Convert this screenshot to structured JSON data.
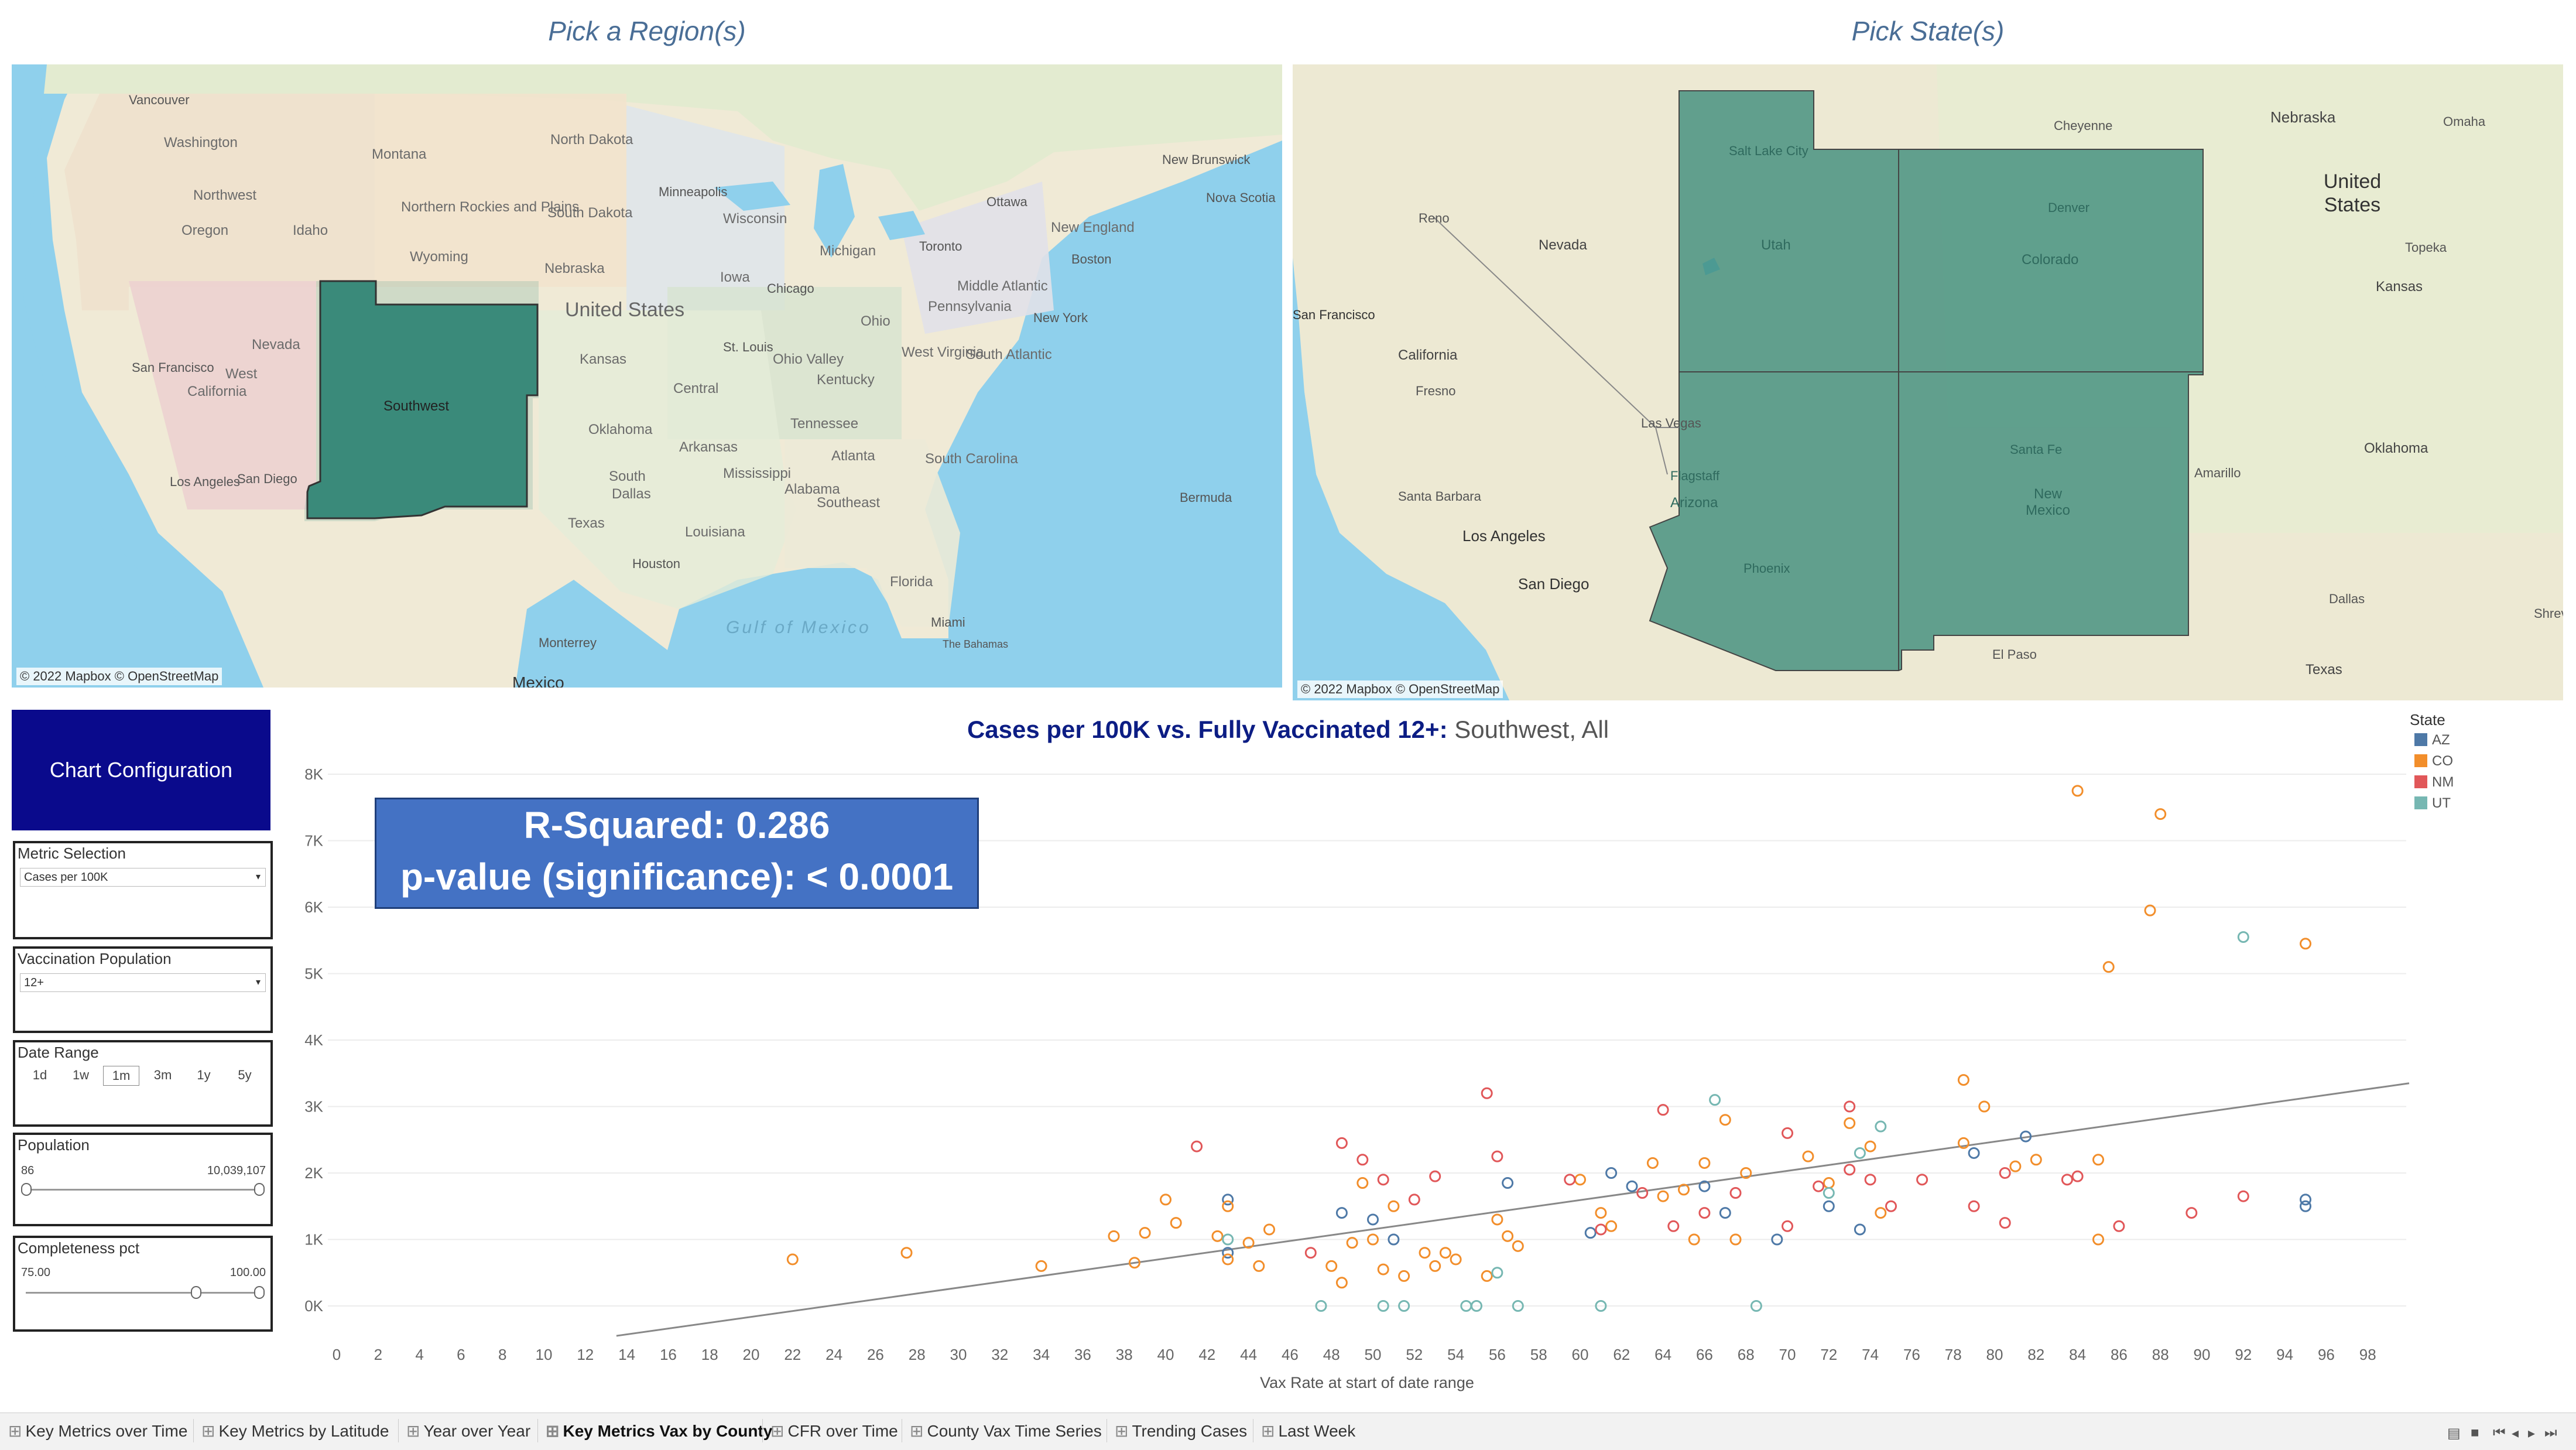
{
  "maps": {
    "region_title": "Pick a Region(s)",
    "state_title": "Pick State(s)",
    "credit": "© 2022 Mapbox © OpenStreetMap",
    "region_map": {
      "selected_label": "Southwest",
      "labels": [
        "Vancouver",
        "Washington",
        "Montana",
        "North Dakota",
        "Northwest",
        "Northern Rockies and Plains",
        "Minneapolis",
        "Ottawa",
        "New Brunswick",
        "Nova Scotia",
        "Oregon",
        "Idaho",
        "South Dakota",
        "Wisconsin",
        "Michigan",
        "Toronto",
        "New England",
        "Boston",
        "Wyoming",
        "Nebraska",
        "Iowa",
        "Chicago",
        "Ohio",
        "Pennsylvania",
        "Middle Atlantic",
        "New York",
        "Nevada",
        "United States",
        "Kansas",
        "St. Louis",
        "Ohio Valley",
        "Kentucky",
        "West Virginia",
        "South Atlantic",
        "Central",
        "West",
        "California",
        "San Francisco",
        "Oklahoma",
        "Arkansas",
        "Tennessee",
        "South Carolina",
        "Atlanta",
        "Los Angeles",
        "San Diego",
        "South",
        "Dallas",
        "Mississippi",
        "Alabama",
        "Southeast",
        "Texas",
        "Louisiana",
        "Houston",
        "Bermuda",
        "Florida",
        "Miami",
        "The Bahamas",
        "Gulf of Mexico",
        "Monterrey",
        "Mexico"
      ]
    },
    "state_map": {
      "selected_states": [
        "Utah",
        "Colorado",
        "Arizona",
        "New Mexico"
      ],
      "labels": [
        "Cheyenne",
        "Nebraska",
        "Omaha",
        "United States",
        "Salt Lake City",
        "Denver",
        "Reno",
        "Nevada",
        "Topeka",
        "Kansas",
        "San Francisco",
        "California",
        "Utah",
        "Colorado",
        "Fresno",
        "Las Vegas",
        "Oklahoma",
        "Santa Fe",
        "Amarillo",
        "Flagstaff",
        "Arizona",
        "New Mexico",
        "Santa Barbara",
        "Los Angeles",
        "Phoenix",
        "San Diego",
        "Dallas",
        "El Paso",
        "Texas",
        "Shreveport"
      ]
    }
  },
  "config": {
    "header": "Chart Configuration",
    "metric": {
      "title": "Metric Selection",
      "value": "Cases per 100K"
    },
    "vax_pop": {
      "title": "Vaccination Population",
      "value": "12+"
    },
    "date_range": {
      "title": "Date Range",
      "options": [
        "1d",
        "1w",
        "1m",
        "3m",
        "1y",
        "5y"
      ],
      "selected": "1m"
    },
    "population": {
      "title": "Population",
      "min": "86",
      "max": "10,039,107"
    },
    "completeness": {
      "title": "Completeness pct",
      "min": "75.00",
      "max": "100.00"
    }
  },
  "chart": {
    "title_bold": "Cases per 100K vs. Fully Vaccinated 12+:",
    "title_rest": " Southwest, All",
    "r_squared": "R-Squared: 0.286",
    "p_value": "p-value (significance): < 0.0001",
    "legend_title": "State",
    "colors": {
      "AZ": "#4e79a7",
      "CO": "#f28e2b",
      "NM": "#e15759",
      "UT": "#76b7b2"
    }
  },
  "chart_data": {
    "type": "scatter",
    "xlabel": "Vax Rate at start of date range",
    "ylabel": "",
    "xlim": [
      0,
      100
    ],
    "ylim": [
      -0.5,
      8.2
    ],
    "xticks": [
      "0",
      "2",
      "4",
      "6",
      "8",
      "10",
      "12",
      "14",
      "16",
      "18",
      "20",
      "22",
      "24",
      "26",
      "28",
      "30",
      "32",
      "34",
      "36",
      "38",
      "40",
      "42",
      "44",
      "46",
      "48",
      "50",
      "52",
      "54",
      "56",
      "58",
      "60",
      "62",
      "64",
      "66",
      "68",
      "70",
      "72",
      "74",
      "76",
      "78",
      "80",
      "82",
      "84",
      "86",
      "88",
      "90",
      "92",
      "94",
      "96",
      "98"
    ],
    "yticks": [
      {
        "v": 0,
        "label": "0K"
      },
      {
        "v": 1,
        "label": "1K"
      },
      {
        "v": 2,
        "label": "2K"
      },
      {
        "v": 3,
        "label": "3K"
      },
      {
        "v": 4,
        "label": "4K"
      },
      {
        "v": 5,
        "label": "5K"
      },
      {
        "v": 6,
        "label": "6K"
      },
      {
        "v": 7,
        "label": "7K"
      },
      {
        "v": 8,
        "label": "8K"
      }
    ],
    "trendline": [
      [
        13.5,
        -0.45
      ],
      [
        100,
        3.35
      ]
    ],
    "series": [
      {
        "name": "AZ",
        "points": [
          [
            43,
            1.6
          ],
          [
            43,
            0.8
          ],
          [
            48.5,
            1.4
          ],
          [
            50,
            1.3
          ],
          [
            51,
            1.0
          ],
          [
            56.5,
            1.85
          ],
          [
            60.5,
            1.1
          ],
          [
            61.5,
            2.0
          ],
          [
            62.5,
            1.8
          ],
          [
            66,
            1.8
          ],
          [
            67,
            1.4
          ],
          [
            69.5,
            1.0
          ],
          [
            72,
            1.5
          ],
          [
            73.5,
            1.15
          ],
          [
            79,
            2.3
          ],
          [
            81.5,
            2.55
          ],
          [
            95,
            1.6
          ],
          [
            95,
            1.5
          ]
        ]
      },
      {
        "name": "CO",
        "points": [
          [
            22,
            0.7
          ],
          [
            27.5,
            0.8
          ],
          [
            34,
            0.6
          ],
          [
            37.5,
            1.05
          ],
          [
            38.5,
            0.65
          ],
          [
            39,
            1.1
          ],
          [
            40,
            1.6
          ],
          [
            40.5,
            1.25
          ],
          [
            42.5,
            1.05
          ],
          [
            43,
            0.7
          ],
          [
            43,
            1.5
          ],
          [
            44,
            0.95
          ],
          [
            44.5,
            0.6
          ],
          [
            45,
            1.15
          ],
          [
            48,
            0.6
          ],
          [
            48.5,
            0.35
          ],
          [
            49,
            0.95
          ],
          [
            49.5,
            1.85
          ],
          [
            50,
            1.0
          ],
          [
            50.5,
            0.55
          ],
          [
            51,
            1.5
          ],
          [
            51.5,
            0.45
          ],
          [
            52.5,
            0.8
          ],
          [
            53,
            0.6
          ],
          [
            53.5,
            0.8
          ],
          [
            54,
            0.7
          ],
          [
            55.5,
            0.45
          ],
          [
            56,
            1.3
          ],
          [
            56.5,
            1.05
          ],
          [
            57,
            0.9
          ],
          [
            60,
            1.9
          ],
          [
            61,
            1.4
          ],
          [
            61.5,
            1.2
          ],
          [
            63.5,
            2.15
          ],
          [
            64,
            1.65
          ],
          [
            65,
            1.75
          ],
          [
            65.5,
            1.0
          ],
          [
            66,
            2.15
          ],
          [
            67,
            2.8
          ],
          [
            67.5,
            1.0
          ],
          [
            68,
            2.0
          ],
          [
            71,
            2.25
          ],
          [
            72,
            1.85
          ],
          [
            73,
            2.75
          ],
          [
            74,
            2.4
          ],
          [
            74.5,
            1.4
          ],
          [
            78.5,
            3.4
          ],
          [
            78.5,
            2.45
          ],
          [
            79.5,
            3.0
          ],
          [
            81,
            2.1
          ],
          [
            82,
            2.2
          ],
          [
            84,
            7.75
          ],
          [
            85,
            2.2
          ],
          [
            85,
            1.0
          ],
          [
            85.5,
            5.1
          ],
          [
            87.5,
            5.95
          ],
          [
            88,
            7.4
          ],
          [
            95,
            5.45
          ]
        ]
      },
      {
        "name": "NM",
        "points": [
          [
            41.5,
            2.4
          ],
          [
            47,
            0.8
          ],
          [
            48.5,
            2.45
          ],
          [
            49.5,
            2.2
          ],
          [
            50.5,
            1.9
          ],
          [
            52,
            1.6
          ],
          [
            53,
            1.95
          ],
          [
            55.5,
            3.2
          ],
          [
            56,
            2.25
          ],
          [
            59.5,
            1.9
          ],
          [
            61,
            1.15
          ],
          [
            63,
            1.7
          ],
          [
            64,
            2.95
          ],
          [
            64.5,
            1.2
          ],
          [
            66,
            1.4
          ],
          [
            67.5,
            1.7
          ],
          [
            70,
            1.2
          ],
          [
            70,
            2.6
          ],
          [
            71.5,
            1.8
          ],
          [
            73,
            2.05
          ],
          [
            73,
            3.0
          ],
          [
            74,
            1.9
          ],
          [
            75,
            1.5
          ],
          [
            76.5,
            1.9
          ],
          [
            79,
            1.5
          ],
          [
            80.5,
            2.0
          ],
          [
            80.5,
            1.25
          ],
          [
            83.5,
            1.9
          ],
          [
            84,
            1.95
          ],
          [
            86,
            1.2
          ],
          [
            89.5,
            1.4
          ],
          [
            92,
            1.65
          ]
        ]
      },
      {
        "name": "UT",
        "points": [
          [
            43,
            1.0
          ],
          [
            47.5,
            0.0
          ],
          [
            50.5,
            0.0
          ],
          [
            51.5,
            0.0
          ],
          [
            54.5,
            0.0
          ],
          [
            55,
            0.0
          ],
          [
            56,
            0.5
          ],
          [
            57,
            0.0
          ],
          [
            61,
            0.0
          ],
          [
            66.5,
            3.1
          ],
          [
            68.5,
            0.0
          ],
          [
            72,
            1.7
          ],
          [
            73.5,
            2.3
          ],
          [
            74.5,
            2.7
          ],
          [
            92,
            5.55
          ]
        ]
      }
    ]
  },
  "tabs": [
    {
      "label": "Key Metrics over Time",
      "active": false
    },
    {
      "label": "Key Metrics by Latitude",
      "active": false
    },
    {
      "label": "Year over Year",
      "active": false
    },
    {
      "label": "Key Metrics Vax by County",
      "active": true
    },
    {
      "label": "CFR over Time",
      "active": false
    },
    {
      "label": "County Vax Time Series",
      "active": false
    },
    {
      "label": "Trending Cases",
      "active": false
    },
    {
      "label": "Last Week",
      "active": false
    }
  ]
}
